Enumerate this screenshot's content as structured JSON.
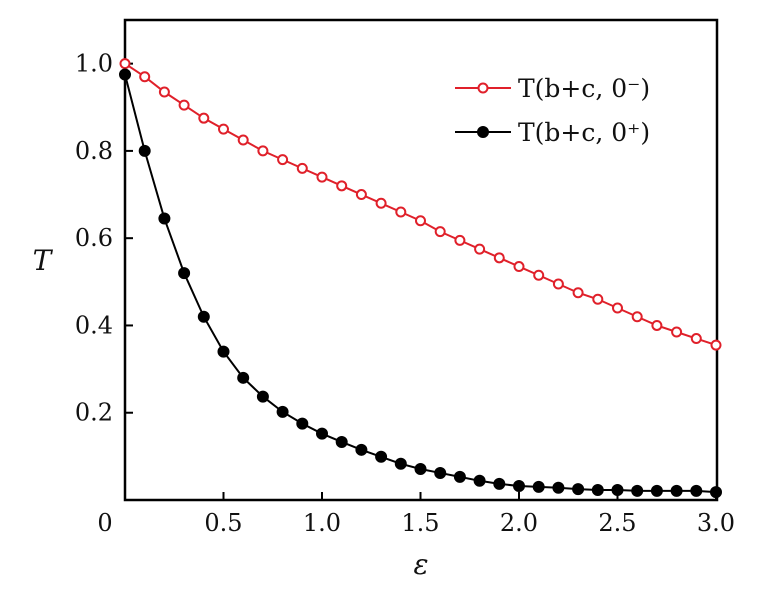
{
  "chart_data": {
    "type": "line",
    "title": "",
    "xlabel": "ε",
    "ylabel": "T",
    "xlim": [
      0,
      3.0
    ],
    "ylim": [
      0,
      1.1
    ],
    "x_ticks": [
      "0",
      "0.5",
      "1.0",
      "1.5",
      "2.0",
      "2.5",
      "3.0"
    ],
    "x_tick_values": [
      0,
      0.5,
      1.0,
      1.5,
      2.0,
      2.5,
      3.0
    ],
    "y_ticks": [
      "0.2",
      "0.4",
      "0.6",
      "0.8",
      "1.0"
    ],
    "y_tick_values": [
      0.2,
      0.4,
      0.6,
      0.8,
      1.0
    ],
    "grid": false,
    "legend_position": "top-right",
    "x": [
      0,
      0.1,
      0.2,
      0.3,
      0.4,
      0.5,
      0.6,
      0.7,
      0.8,
      0.9,
      1.0,
      1.1,
      1.2,
      1.3,
      1.4,
      1.5,
      1.6,
      1.7,
      1.8,
      1.9,
      2.0,
      2.1,
      2.2,
      2.3,
      2.4,
      2.5,
      2.6,
      2.7,
      2.8,
      2.9,
      3.0
    ],
    "series": [
      {
        "name": "T(b+c, 0⁻)",
        "color": "#e0202a",
        "marker": "open-circle",
        "values": [
          1.0,
          0.97,
          0.935,
          0.905,
          0.875,
          0.85,
          0.825,
          0.8,
          0.78,
          0.76,
          0.74,
          0.72,
          0.7,
          0.68,
          0.66,
          0.64,
          0.615,
          0.595,
          0.575,
          0.555,
          0.535,
          0.515,
          0.495,
          0.475,
          0.46,
          0.44,
          0.42,
          0.4,
          0.385,
          0.37,
          0.355
        ]
      },
      {
        "name": "T(b+c, 0⁺)",
        "color": "#000000",
        "marker": "filled-circle",
        "values": [
          0.975,
          0.8,
          0.645,
          0.52,
          0.42,
          0.34,
          0.28,
          0.237,
          0.202,
          0.175,
          0.152,
          0.133,
          0.115,
          0.099,
          0.083,
          0.071,
          0.062,
          0.053,
          0.044,
          0.037,
          0.032,
          0.03,
          0.028,
          0.025,
          0.023,
          0.023,
          0.021,
          0.021,
          0.021,
          0.021,
          0.018
        ]
      }
    ]
  }
}
